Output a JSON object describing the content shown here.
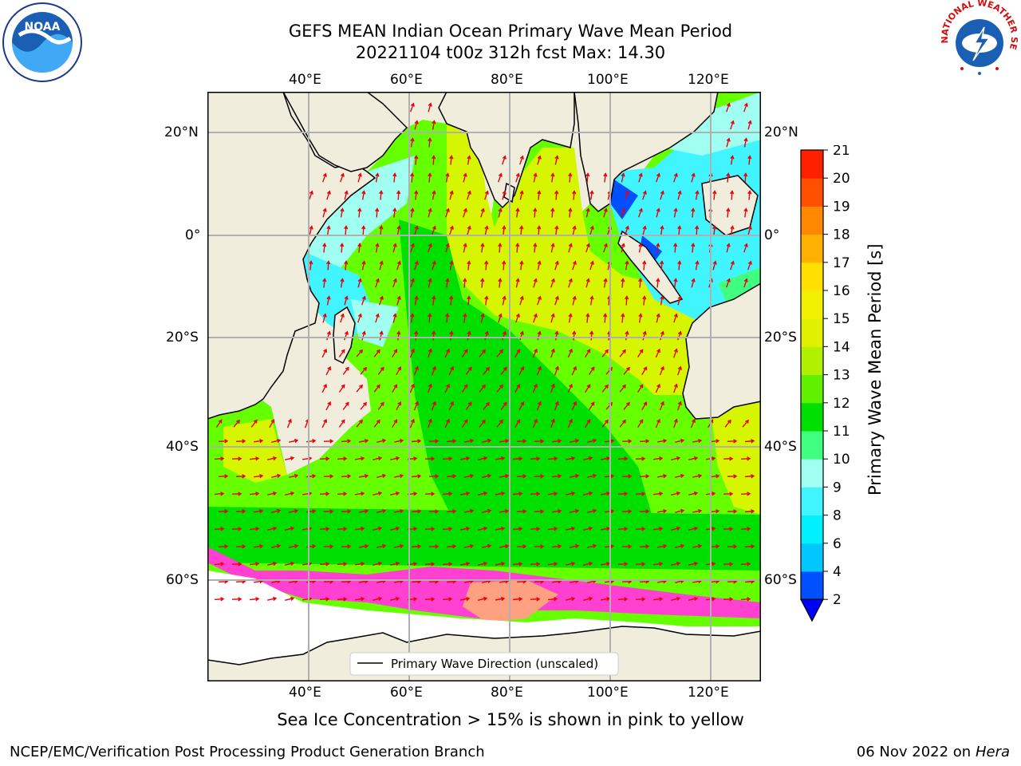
{
  "title": {
    "line1": "GEFS MEAN Indian Ocean Primary Wave Mean Period",
    "line2": "20221104 t00z 312h fcst   Max: 14.30"
  },
  "axes": {
    "lon_labels": [
      "40°E",
      "60°E",
      "80°E",
      "100°E",
      "120°E"
    ],
    "lat_labels": [
      "20°N",
      "0°",
      "20°S",
      "40°S",
      "60°S"
    ]
  },
  "legend": {
    "label": "Primary Wave Direction (unscaled)"
  },
  "colorbar": {
    "label": "Primary Wave Mean Period [s]",
    "ticks": [
      "2",
      "4",
      "6",
      "8",
      "9",
      "10",
      "11",
      "12",
      "13",
      "14",
      "15",
      "16",
      "17",
      "18",
      "19",
      "20",
      "21"
    ],
    "colors": [
      "#0050ff",
      "#00c8ff",
      "#00f0ff",
      "#40f5ff",
      "#a0fff0",
      "#40ff80",
      "#00e000",
      "#60f000",
      "#b0f000",
      "#e0f000",
      "#f0f000",
      "#ffe000",
      "#ffb000",
      "#ff8800",
      "#ff5000",
      "#ff2000"
    ],
    "under_color": "#0000ff"
  },
  "caption": "Sea Ice Concentration > 15% is shown in pink to yellow",
  "footer": {
    "credit": "NCEP/EMC/Verification Post Processing Product Generation Branch",
    "date": "06 Nov 2022 on",
    "host": "Hera"
  },
  "logos": {
    "noaa": "NOAA",
    "nws": "NATIONAL WEATHER SERVICE"
  }
}
